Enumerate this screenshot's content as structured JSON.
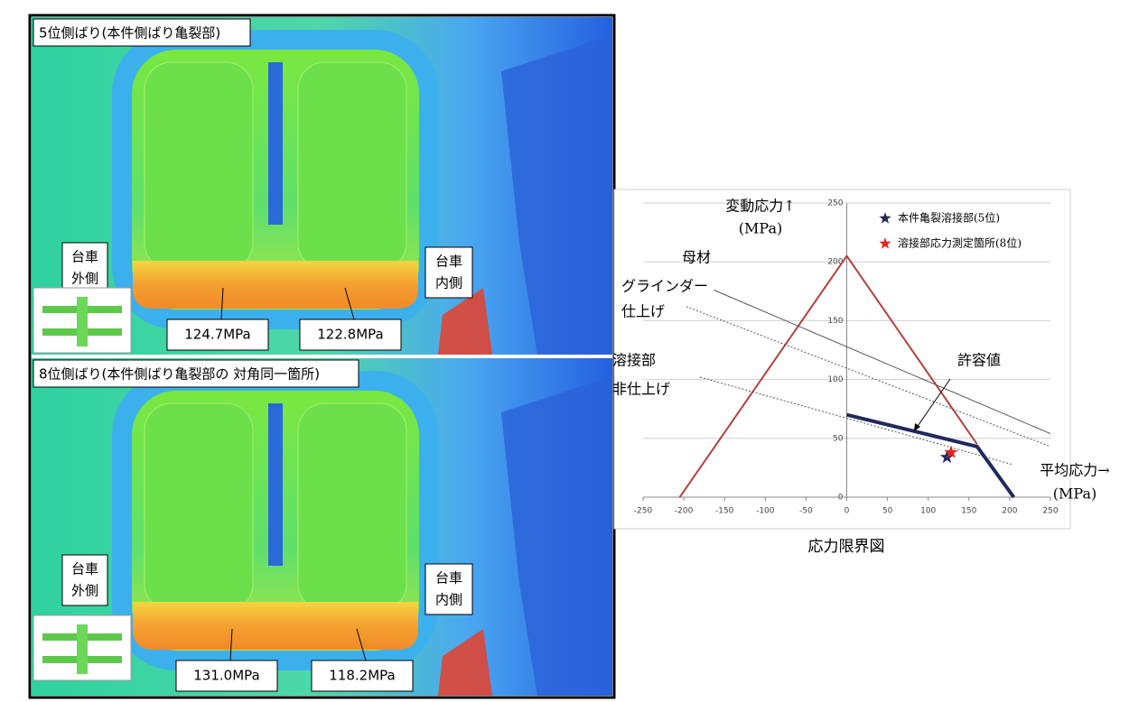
{
  "panels": [
    {
      "title": "5位側ばり(本件側ばり亀裂部)",
      "outer_label": [
        "台車",
        "外側"
      ],
      "inner_label": [
        "台車",
        "内側"
      ],
      "stress_labels": [
        "124.7MPa",
        "122.8MPa"
      ]
    },
    {
      "title": "8位側ばり(本件側ばり亀裂部の 対角同一箇所)",
      "outer_label": [
        "台車",
        "外側"
      ],
      "inner_label": [
        "台車",
        "内側"
      ],
      "stress_labels": [
        "131.0MPa",
        "118.2MPa"
      ]
    }
  ],
  "chart_data": {
    "type": "line",
    "title": "応力限界図",
    "y_label": [
      "変動応力↑",
      "(MPa)"
    ],
    "x_label": [
      "平均応力→",
      "(MPa)"
    ],
    "xlim": [
      -250,
      250
    ],
    "ylim": [
      0,
      250
    ],
    "xticks": [
      -250,
      -200,
      -150,
      -100,
      -50,
      0,
      50,
      100,
      150,
      200,
      250
    ],
    "yticks": [
      0,
      50,
      100,
      150,
      200,
      250
    ],
    "grid": true,
    "legend": "upper right",
    "annotations": [
      "母材",
      "グラインダー",
      "仕上げ",
      "溶接部",
      "非仕上げ",
      "許容値"
    ],
    "series": [
      {
        "color": "#b5413c",
        "style": "solid",
        "x": [
          -205,
          0,
          160
        ],
        "values": [
          0,
          205,
          45
        ]
      },
      {
        "color": "#555555",
        "style": "thin",
        "x": [
          -163,
          250
        ],
        "values": [
          176,
          54
        ]
      },
      {
        "color": "#555555",
        "style": "dotted",
        "x": [
          -197,
          250
        ],
        "values": [
          162,
          43
        ]
      },
      {
        "color": "#555555",
        "style": "dotted",
        "x": [
          -180,
          202
        ],
        "values": [
          102,
          28
        ]
      },
      {
        "color": "#1f2a5c",
        "style": "bold",
        "x": [
          0,
          160,
          205
        ],
        "values": [
          70,
          43,
          0
        ]
      },
      {
        "name": "本件亀裂溶接部(5位)",
        "color": "#1f2a5c",
        "style": "star",
        "x": [
          123
        ],
        "values": [
          34
        ]
      },
      {
        "name": "溶接部応力測定箇所(8位)",
        "color": "#e8231e",
        "style": "star",
        "x": [
          128
        ],
        "values": [
          38
        ]
      }
    ]
  }
}
